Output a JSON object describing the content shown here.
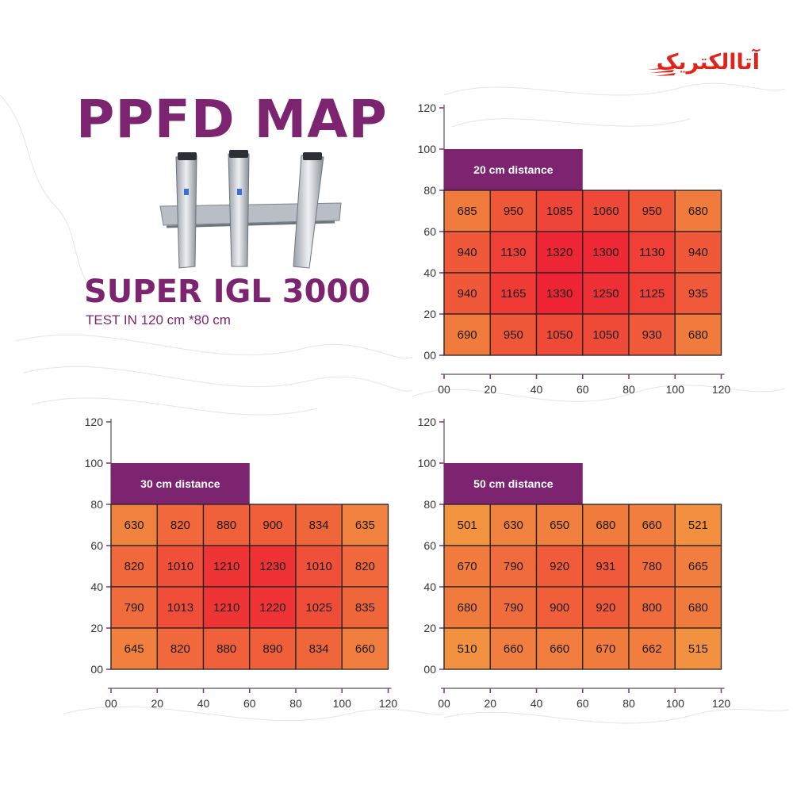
{
  "header": {
    "title": "PPFD MAP",
    "model": "SUPER IGL 3000",
    "test_note": "TEST IN 120 cm *80 cm",
    "logo_text": "آتاالکتریک"
  },
  "colors": {
    "brand_purple": "#7d2470",
    "logo_red": "#e2231a",
    "grid_line": "#222222",
    "axis_tick_color": "#8a2c7d",
    "heat_low": "#f29340",
    "heat_high": "#ee2434"
  },
  "icons": [
    "company-logo-icon",
    "grow-light-fixture-icon"
  ],
  "chart_data": [
    {
      "type": "heatmap",
      "title": "20 cm distance",
      "xlabel": "",
      "ylabel": "",
      "x_ticks": [
        "00",
        "20",
        "40",
        "60",
        "80",
        "100",
        "120"
      ],
      "y_ticks": [
        "00",
        "20",
        "40",
        "60",
        "80",
        "100",
        "120"
      ],
      "xlim": [
        0,
        120
      ],
      "ylim": [
        0,
        120
      ],
      "grid": true,
      "color_range": [
        500,
        1330
      ],
      "rows": [
        [
          685,
          950,
          1085,
          1060,
          950,
          680
        ],
        [
          940,
          1130,
          1320,
          1300,
          1130,
          940
        ],
        [
          940,
          1165,
          1330,
          1250,
          1125,
          935
        ],
        [
          690,
          950,
          1050,
          1050,
          930,
          680
        ]
      ]
    },
    {
      "type": "heatmap",
      "title": "30 cm distance",
      "xlabel": "",
      "ylabel": "",
      "x_ticks": [
        "00",
        "20",
        "40",
        "60",
        "80",
        "100",
        "120"
      ],
      "y_ticks": [
        "00",
        "20",
        "40",
        "60",
        "80",
        "100",
        "120"
      ],
      "xlim": [
        0,
        120
      ],
      "ylim": [
        0,
        120
      ],
      "grid": true,
      "color_range": [
        500,
        1330
      ],
      "rows": [
        [
          630,
          820,
          880,
          900,
          834,
          635
        ],
        [
          820,
          1010,
          1210,
          1230,
          1010,
          820
        ],
        [
          790,
          1013,
          1210,
          1220,
          1025,
          835
        ],
        [
          645,
          820,
          880,
          890,
          834,
          660
        ]
      ]
    },
    {
      "type": "heatmap",
      "title": "50 cm distance",
      "xlabel": "",
      "ylabel": "",
      "x_ticks": [
        "00",
        "20",
        "40",
        "60",
        "80",
        "100",
        "120"
      ],
      "y_ticks": [
        "00",
        "20",
        "40",
        "60",
        "80",
        "100",
        "120"
      ],
      "xlim": [
        0,
        120
      ],
      "ylim": [
        0,
        120
      ],
      "grid": true,
      "color_range": [
        500,
        1330
      ],
      "rows": [
        [
          501,
          630,
          650,
          680,
          660,
          521
        ],
        [
          670,
          790,
          920,
          931,
          780,
          665
        ],
        [
          680,
          790,
          900,
          920,
          800,
          680
        ],
        [
          510,
          660,
          660,
          670,
          662,
          515
        ]
      ]
    }
  ]
}
